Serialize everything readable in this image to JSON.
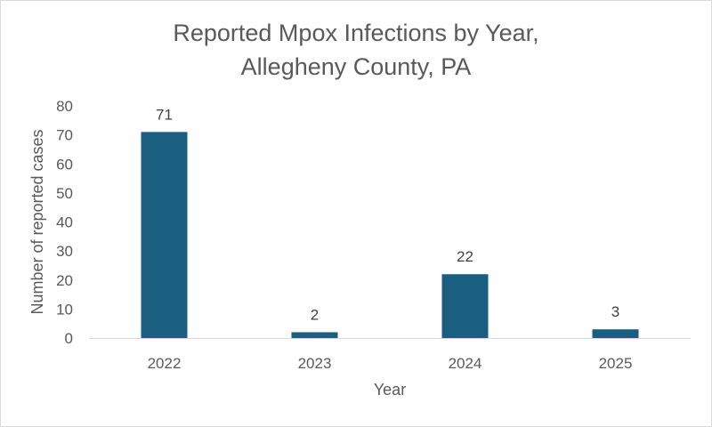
{
  "chart_data": {
    "type": "bar",
    "title_lines": [
      "Reported Mpox Infections by Year,",
      "Allegheny County, PA"
    ],
    "categories": [
      "2022",
      "2023",
      "2024",
      "2025"
    ],
    "values": [
      71,
      2,
      22,
      3
    ],
    "data_labels": [
      "71",
      "2",
      "22",
      "3"
    ],
    "xlabel": "Year",
    "ylabel": "Number of reported cases",
    "ylim": [
      0,
      80
    ],
    "yticks": [
      "0",
      "10",
      "20",
      "30",
      "40",
      "50",
      "60",
      "70",
      "80"
    ],
    "grid": false,
    "legend": "none",
    "bar_color": "#1a5e80",
    "text_color": "#595959"
  }
}
